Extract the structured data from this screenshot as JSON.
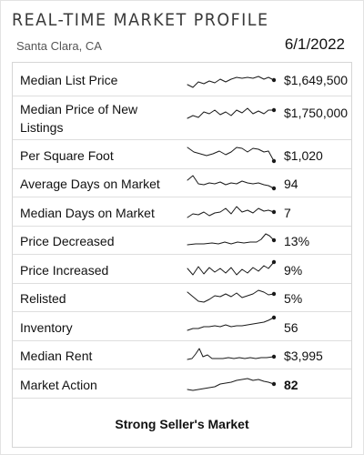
{
  "header": {
    "title": "Real-Time Market Profile",
    "location": "Santa Clara, CA",
    "date": "6/1/2022"
  },
  "metrics": [
    {
      "label": "Median List Price",
      "value": "$1,649,500"
    },
    {
      "label": "Median Price of New Listings",
      "value": "$1,750,000"
    },
    {
      "label": "Per Square Foot",
      "value": "$1,020"
    },
    {
      "label": "Average Days on Market",
      "value": "94"
    },
    {
      "label": "Median Days on Market",
      "value": "7"
    },
    {
      "label": "Price Decreased",
      "value": "13%"
    },
    {
      "label": "Price Increased",
      "value": "9%"
    },
    {
      "label": "Relisted",
      "value": "5%"
    },
    {
      "label": "Inventory",
      "value": "56"
    },
    {
      "label": "Median Rent",
      "value": "$3,995"
    },
    {
      "label": "Market Action",
      "value": "82"
    }
  ],
  "footer": {
    "market_status": "Strong Seller's Market"
  }
}
